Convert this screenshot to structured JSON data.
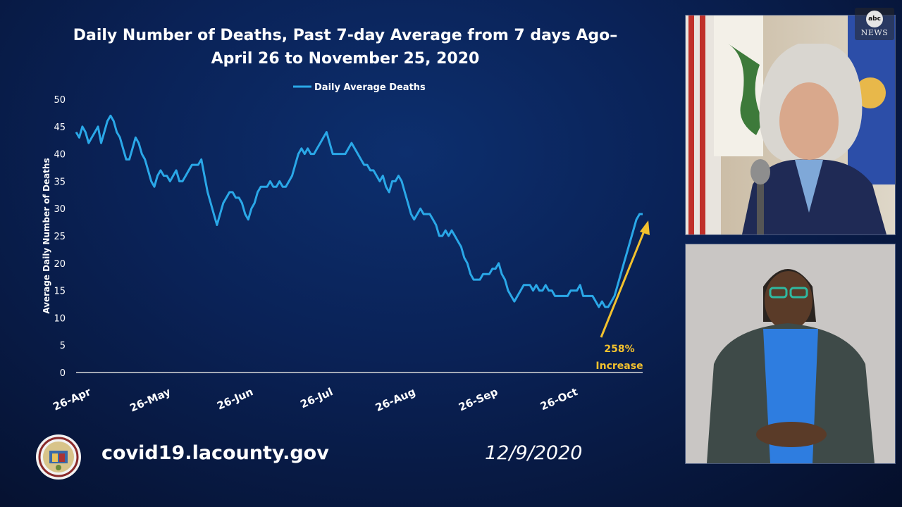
{
  "chart_data": {
    "type": "line",
    "title": "Daily Number of Deaths, Past 7-day Average from 7 days Ago–",
    "subtitle": "April 26 to November 25, 2020",
    "ylabel": "Average Daily Number of Deaths",
    "xlabel": "",
    "ylim": [
      0,
      50
    ],
    "yticks": [
      "0",
      "5",
      "10",
      "15",
      "20",
      "25",
      "30",
      "35",
      "40",
      "45",
      "50"
    ],
    "xticks": [
      "26-Apr",
      "26-May",
      "26-Jun",
      "26-Jul",
      "26-Aug",
      "26-Sep",
      "26-Oct"
    ],
    "legend": {
      "position": "top",
      "color": "#2aa8e8"
    },
    "series": [
      {
        "name": "Daily Average Deaths",
        "color": "#2aa8e8",
        "x_start": "2020-04-26",
        "x_end": "2020-11-25",
        "values": [
          44,
          43,
          45,
          44,
          42,
          43,
          44,
          45,
          42,
          44,
          46,
          47,
          46,
          44,
          43,
          41,
          39,
          39,
          41,
          43,
          42,
          40,
          39,
          37,
          35,
          34,
          36,
          37,
          36,
          36,
          35,
          36,
          37,
          35,
          35,
          36,
          37,
          38,
          38,
          38,
          39,
          36,
          33,
          31,
          29,
          27,
          29,
          31,
          32,
          33,
          33,
          32,
          32,
          31,
          29,
          28,
          30,
          31,
          33,
          34,
          34,
          34,
          35,
          34,
          34,
          35,
          34,
          34,
          35,
          36,
          38,
          40,
          41,
          40,
          41,
          40,
          40,
          41,
          42,
          43,
          44,
          42,
          40,
          40,
          40,
          40,
          40,
          41,
          42,
          41,
          40,
          39,
          38,
          38,
          37,
          37,
          36,
          35,
          36,
          34,
          33,
          35,
          35,
          36,
          35,
          33,
          31,
          29,
          28,
          29,
          30,
          29,
          29,
          29,
          28,
          27,
          25,
          25,
          26,
          25,
          26,
          25,
          24,
          23,
          21,
          20,
          18,
          17,
          17,
          17,
          18,
          18,
          18,
          19,
          19,
          20,
          18,
          17,
          15,
          14,
          13,
          14,
          15,
          16,
          16,
          16,
          15,
          16,
          15,
          15,
          16,
          15,
          15,
          14,
          14,
          14,
          14,
          14,
          15,
          15,
          15,
          16,
          14,
          14,
          14,
          14,
          13,
          12,
          13,
          12,
          12,
          13,
          14,
          16,
          18,
          20,
          22,
          24,
          26,
          28,
          29,
          29
        ],
        "annotation": {
          "label_line1": "258%",
          "label_line2": "Increase",
          "color": "#f2c12e"
        }
      }
    ]
  },
  "footer": {
    "url": "covid19.lacounty.gov",
    "date": "12/9/2020"
  },
  "broadcast": {
    "network_logo": "abc-news-logo",
    "logo_abc": "abc",
    "logo_news": "NEWS"
  }
}
